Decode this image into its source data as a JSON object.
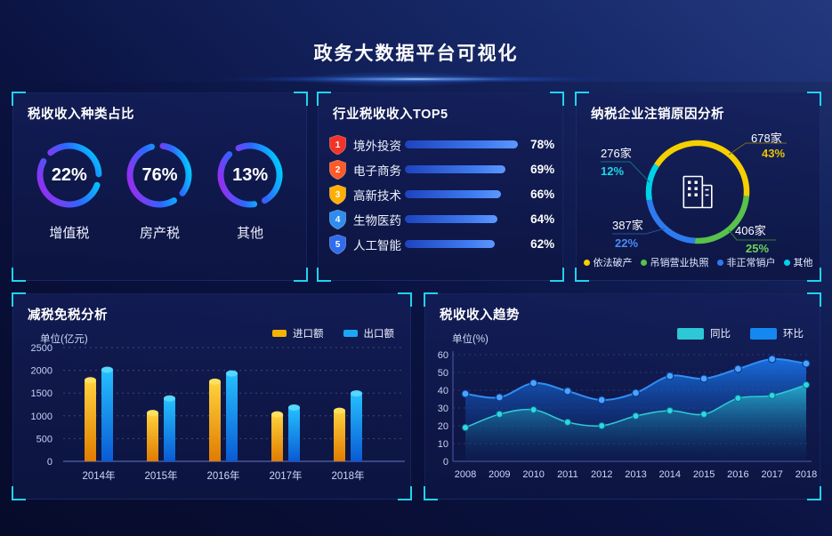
{
  "header": {
    "title": "政务大数据平台可视化"
  },
  "colors": {
    "accent_cyan": "#1fd4f0",
    "panel_bg": "#101a4d"
  },
  "chart_data": [
    {
      "id": "tax-type-rings",
      "type": "pie",
      "variant": "rings",
      "title": "税收收入种类占比",
      "unit": "%",
      "items": [
        {
          "label": "增值税",
          "value": 22
        },
        {
          "label": "房产税",
          "value": 76
        },
        {
          "label": "其他",
          "value": 13
        }
      ]
    },
    {
      "id": "industry-top5",
      "type": "bar",
      "orientation": "horizontal",
      "title": "行业税收收入TOP5",
      "unit": "%",
      "items": [
        {
          "rank": 1,
          "label": "境外投资",
          "value": 78,
          "badge_color": "#f23428"
        },
        {
          "rank": 2,
          "label": "电子商务",
          "value": 69,
          "badge_color": "#ff5a28"
        },
        {
          "rank": 3,
          "label": "高新技术",
          "value": 66,
          "badge_color": "#ffaf00"
        },
        {
          "rank": 4,
          "label": "生物医药",
          "value": 64,
          "badge_color": "#2f8cf0"
        },
        {
          "rank": 5,
          "label": "人工智能",
          "value": 62,
          "badge_color": "#2f6cf0"
        }
      ]
    },
    {
      "id": "deregistration-donut",
      "type": "pie",
      "variant": "donut",
      "title": "纳税企业注销原因分析",
      "center_icon": "building-icon",
      "slices": [
        {
          "label": "依法破产",
          "count_label": "678家",
          "percent_label": "43%",
          "value": 43,
          "color": "#f5d000",
          "line_color": "#7d6b20",
          "pct_color": "#e8c400"
        },
        {
          "label": "吊销营业执照",
          "count_label": "406家",
          "percent_label": "25%",
          "value": 25,
          "color": "#58c24a",
          "line_color": "#3a7a33",
          "pct_color": "#6cd455"
        },
        {
          "label": "非正常销户",
          "count_label": "387家",
          "percent_label": "22%",
          "value": 22,
          "color": "#2e7bf0",
          "line_color": "#24509d",
          "pct_color": "#4a8cf5"
        },
        {
          "label": "其他",
          "count_label": "276家",
          "percent_label": "12%",
          "value": 12,
          "color": "#00d2e8",
          "line_color": "#14707d",
          "pct_color": "#19d8e8"
        }
      ],
      "legend_position": "bottom"
    },
    {
      "id": "tax-reduction-bars",
      "type": "bar",
      "title": "减税免税分析",
      "ylabel": "单位(亿元)",
      "categories": [
        "2014年",
        "2015年",
        "2016年",
        "2017年",
        "2018年"
      ],
      "series": [
        {
          "name": "进口额",
          "color": "#f5b301",
          "values": [
            1850,
            1130,
            1820,
            1100,
            1180
          ]
        },
        {
          "name": "出口额",
          "color": "#1ea6f5",
          "values": [
            2080,
            1450,
            2000,
            1250,
            1560
          ]
        }
      ],
      "ylim": [
        0,
        2500
      ],
      "yticks": [
        0,
        500,
        1000,
        1500,
        2000,
        2500
      ],
      "grid": true,
      "legend_position": "top-right"
    },
    {
      "id": "tax-trend-area",
      "type": "area",
      "title": "税收收入趋势",
      "ylabel": "单位(%)",
      "x": [
        2008,
        2009,
        2010,
        2011,
        2012,
        2013,
        2014,
        2015,
        2016,
        2017,
        2018
      ],
      "series": [
        {
          "name": "同比",
          "color": "#2cc8d5",
          "values": [
            19,
            26.5,
            29,
            22,
            20,
            25.5,
            28.5,
            26.5,
            35.5,
            37,
            43
          ]
        },
        {
          "name": "环比",
          "color": "#1488f0",
          "values": [
            38,
            36,
            44,
            39.5,
            34.5,
            38.5,
            48,
            46.5,
            52,
            57.5,
            55
          ]
        }
      ],
      "ylim": [
        0,
        60
      ],
      "yticks": [
        0,
        10,
        20,
        30,
        40,
        50,
        60
      ],
      "grid": true,
      "legend_position": "top-right"
    }
  ]
}
